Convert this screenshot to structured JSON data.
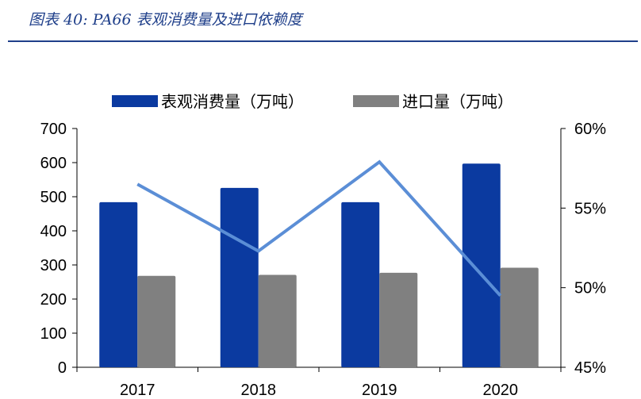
{
  "figure_title": "图表 40:  PA66 表观消费量及进口依赖度",
  "chart_data": {
    "type": "bar",
    "title": "",
    "categories": [
      "2017",
      "2018",
      "2019",
      "2020"
    ],
    "series": [
      {
        "name": "表观消费量（万吨）",
        "type": "bar",
        "axis": "left",
        "color": "#0b3aa0",
        "values": [
          484,
          526,
          484,
          597
        ]
      },
      {
        "name": "进口量（万吨）",
        "type": "bar",
        "axis": "left",
        "color": "#808080",
        "values": [
          268,
          271,
          277,
          292
        ]
      },
      {
        "type": "line",
        "axis": "right",
        "color": "#5b8ed6",
        "values": [
          56.5,
          52.3,
          57.9,
          49.5
        ]
      }
    ],
    "y_left": {
      "min": 0,
      "max": 700,
      "ticks": [
        0,
        100,
        200,
        300,
        400,
        500,
        600,
        700
      ]
    },
    "y_right": {
      "min": 45,
      "max": 60,
      "ticks": [
        "45%",
        "50%",
        "55%",
        "60%"
      ]
    },
    "legend_position": "top",
    "grid": false
  }
}
